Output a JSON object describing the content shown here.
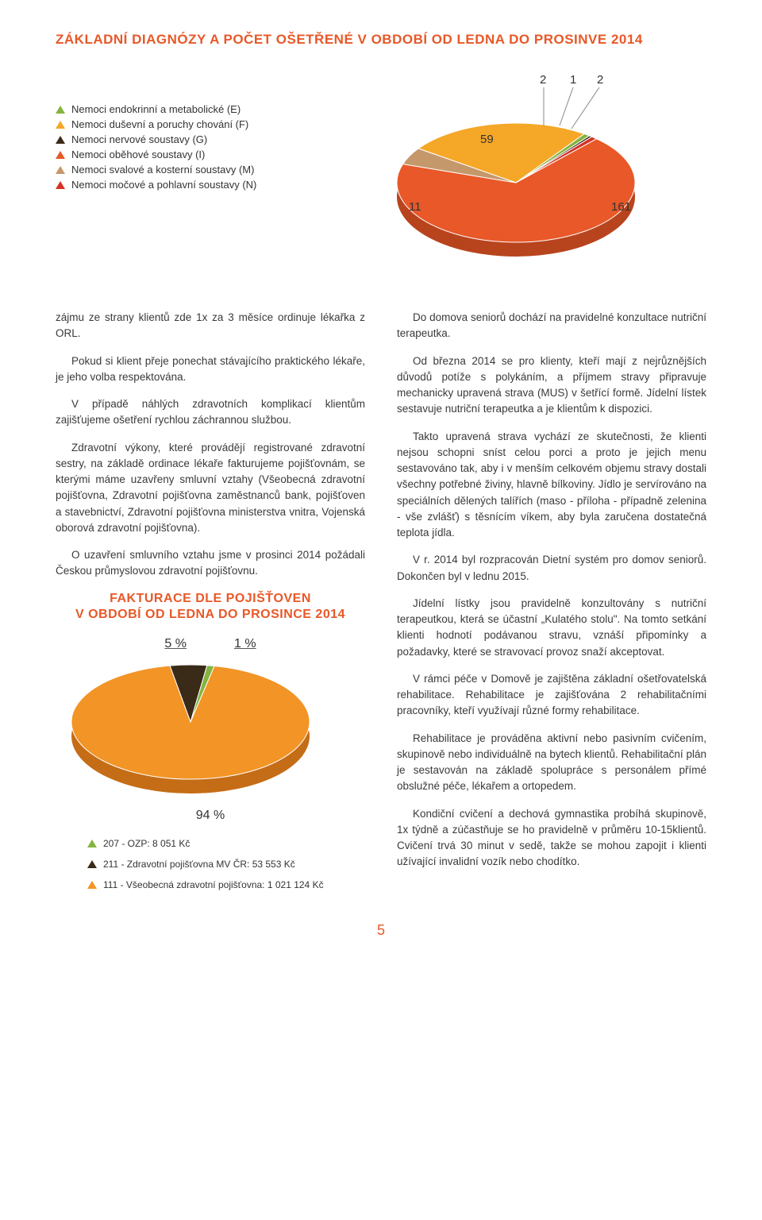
{
  "title": "ZÁKLADNÍ DIAGNÓZY A POČET OŠETŘENÉ V OBDOBÍ OD LEDNA DO PROSINVE 2014",
  "chart1": {
    "type": "pie-3d",
    "slices": [
      {
        "label": "Nemoci oběhové soustavy (I)",
        "value": 161,
        "color": "#e85828"
      },
      {
        "label": "Nemoci svalové a kosterní soustavy (M)",
        "value": 11,
        "color": "#c5986b"
      },
      {
        "label": "Nemoci duševní a poruchy chování (F)",
        "value": 59,
        "color": "#f5a728"
      },
      {
        "label": "Nemoci endokrinní a metabolické (E)",
        "value": 2,
        "color": "#85b440"
      },
      {
        "label": "Nemoci nervové soustavy (G)",
        "value": 1,
        "color": "#3a2b18"
      },
      {
        "label": "Nemoci močové a pohlavní soustavy (N)",
        "value": 2,
        "color": "#d63225"
      }
    ],
    "callouts": [
      "2",
      "1",
      "2",
      "59",
      "11",
      "161"
    ],
    "background": "#ffffff"
  },
  "legend1": [
    {
      "color": "#85b440",
      "text": "Nemoci endokrinní a metabolické (E)"
    },
    {
      "color": "#f5a728",
      "text": "Nemoci duševní a poruchy chování (F)"
    },
    {
      "color": "#3a2b18",
      "text": "Nemoci nervové soustavy (G)"
    },
    {
      "color": "#e85828",
      "text": "Nemoci oběhové soustavy (I)"
    },
    {
      "color": "#c5986b",
      "text": "Nemoci svalové a kosterní soustavy (M)"
    },
    {
      "color": "#d63225",
      "text": "Nemoci močové a pohlavní soustavy (N)"
    }
  ],
  "left_col": {
    "p1": "zájmu ze strany klientů zde 1x za 3 měsíce ordinuje lékařka z ORL.",
    "p2": "Pokud si klient přeje ponechat stávajícího praktického lékaře, je jeho volba respektována.",
    "p3": "V případě náhlých zdravotních komplikací klientům zajišťujeme ošetření rychlou záchrannou službou.",
    "p4": "Zdravotní výkony, které provádějí registrované zdravotní sestry, na základě ordinace lékaře fakturujeme pojišťovnám, se kterými máme uzavřeny smluvní vztahy (Všeobecná zdravotní pojišťovna, Zdravotní pojišťovna zaměstnanců bank, pojišťoven a stavebnictví, Zdravotní pojišťovna ministerstva vnitra, Vojenská oborová zdravotní pojišťovna).",
    "p5": "O uzavření smluvního vztahu jsme v prosinci 2014 požádali Českou průmyslovou zdravotní pojišťovnu."
  },
  "subhead": {
    "l1": "FAKTURACE DLE POJIŠŤOVEN",
    "l2": "V OBDOBÍ OD LEDNA DO PROSINCE 2014"
  },
  "chart2": {
    "type": "pie-3d",
    "pcts": {
      "a": "5 %",
      "b": "1 %",
      "c": "94 %"
    },
    "slices": [
      {
        "label": "111 - Všeobecná zdravotní pojišťovna: 1 021 124 Kč",
        "value": 94,
        "color": "#f29426"
      },
      {
        "label": "207 - OZP: 8 051 Kč",
        "value": 1,
        "color": "#85b440"
      },
      {
        "label": "211 - Zdravotní pojišťovna MV ČR: 53 553 Kč",
        "value": 5,
        "color": "#3a2b18"
      }
    ]
  },
  "legend2": [
    {
      "color": "#85b440",
      "text": "207 - OZP: 8 051 Kč"
    },
    {
      "color": "#3a2b18",
      "text": "211 - Zdravotní pojišťovna MV ČR: 53 553 Kč"
    },
    {
      "color": "#f29426",
      "text": "111 - Všeobecná zdravotní pojišťovna: 1 021 124 Kč"
    }
  ],
  "right_col": {
    "p1": "Do domova seniorů dochází na pravidelné konzultace nutriční terapeutka.",
    "p2": "Od března 2014 se pro klienty, kteří mají z nejrůznějších důvodů potíže s polykáním, a příjmem stravy připravuje mechanicky upravená strava (MUS) v šetřící formě. Jídelní lístek sestavuje nutriční terapeutka a je klientům k dispozici.",
    "p3": "Takto upravená strava vychází ze skutečnosti, že klienti nejsou schopni sníst celou porci a proto je jejich menu sestavováno tak, aby i v menším celkovém objemu stravy dostali všechny potřebné živiny, hlavně bílkoviny. Jídlo je servírováno na speciálních dělených talířích (maso - příloha - případně zelenina - vše zvlášť) s těsnícím víkem, aby byla zaručena dostatečná teplota jídla.",
    "p4": "V r. 2014 byl rozpracován Dietní systém pro domov seniorů. Dokončen byl v lednu 2015.",
    "p5": "Jídelní lístky jsou pravidelně konzultovány s nutriční terapeutkou, která se účastní „Kulatého stolu\". Na tomto setkání klienti hodnotí podávanou stravu, vznáší připomínky a požadavky, které se stravovací provoz snaží akceptovat.",
    "p6": "V rámci péče v Domově je zajištěna základní ošetřovatelská rehabilitace. Rehabilitace je zajišťována 2 rehabilitačními pracovníky, kteří využívají různé formy rehabilitace.",
    "p7": "Rehabilitace je prováděna aktivní nebo pasivním cvičením, skupinově nebo individuálně na bytech klientů. Rehabilitační plán je sestavován na základě spolupráce s personálem přímé obslužné péče, lékařem a ortopedem.",
    "p8": "Kondiční cvičení a dechová gymnastika probíhá skupinově, 1x týdně a zúčastňuje se ho pravidelně v průměru 10-15klientů. Cvičení trvá 30 minut v sedě, takže se mohou zapojit i klienti užívající invalidní vozík nebo chodítko."
  },
  "page": "5"
}
